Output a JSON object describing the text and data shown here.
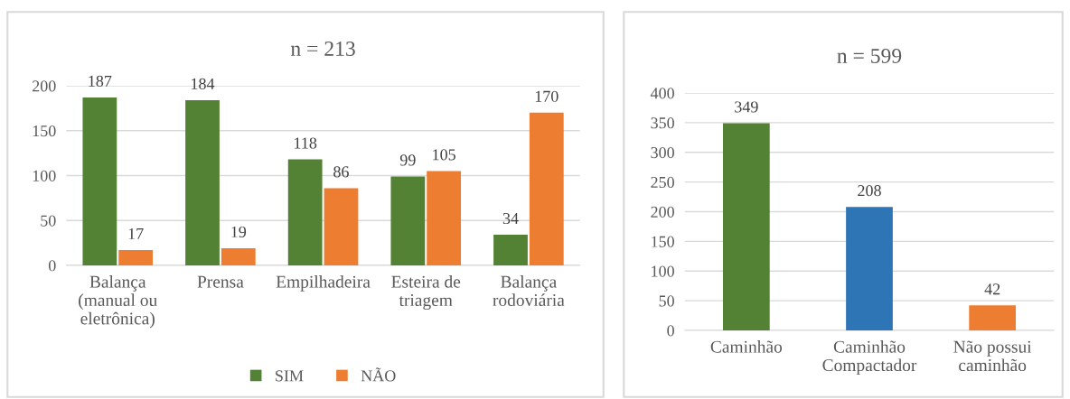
{
  "chart_data": [
    {
      "type": "bar",
      "title": "n = 213",
      "categories": [
        "Balança\n(manual ou\neletrônica)",
        "Prensa",
        "Empilhadeira",
        "Esteira de\ntriagem",
        "Balança\nrodoviária"
      ],
      "series": [
        {
          "name": "SIM",
          "color": "#548235",
          "values": [
            187,
            184,
            118,
            99,
            34
          ]
        },
        {
          "name": "NÃO",
          "color": "#ed7d31",
          "values": [
            17,
            19,
            86,
            105,
            170
          ]
        }
      ],
      "ylim": [
        0,
        200
      ],
      "yticks": [
        0,
        50,
        100,
        150,
        200
      ],
      "grid": "y",
      "legend": "bottom",
      "data_labels": true
    },
    {
      "type": "bar",
      "title": "n = 599",
      "categories": [
        "Caminhão",
        "Caminhão\nCompactador",
        "Não possui\ncaminhão"
      ],
      "values": [
        349,
        208,
        42
      ],
      "colors": [
        "#548235",
        "#2e75b6",
        "#ed7d31"
      ],
      "ylim": [
        0,
        400
      ],
      "yticks": [
        0,
        50,
        100,
        150,
        200,
        250,
        300,
        350,
        400
      ],
      "grid": "y",
      "data_labels": true
    }
  ]
}
